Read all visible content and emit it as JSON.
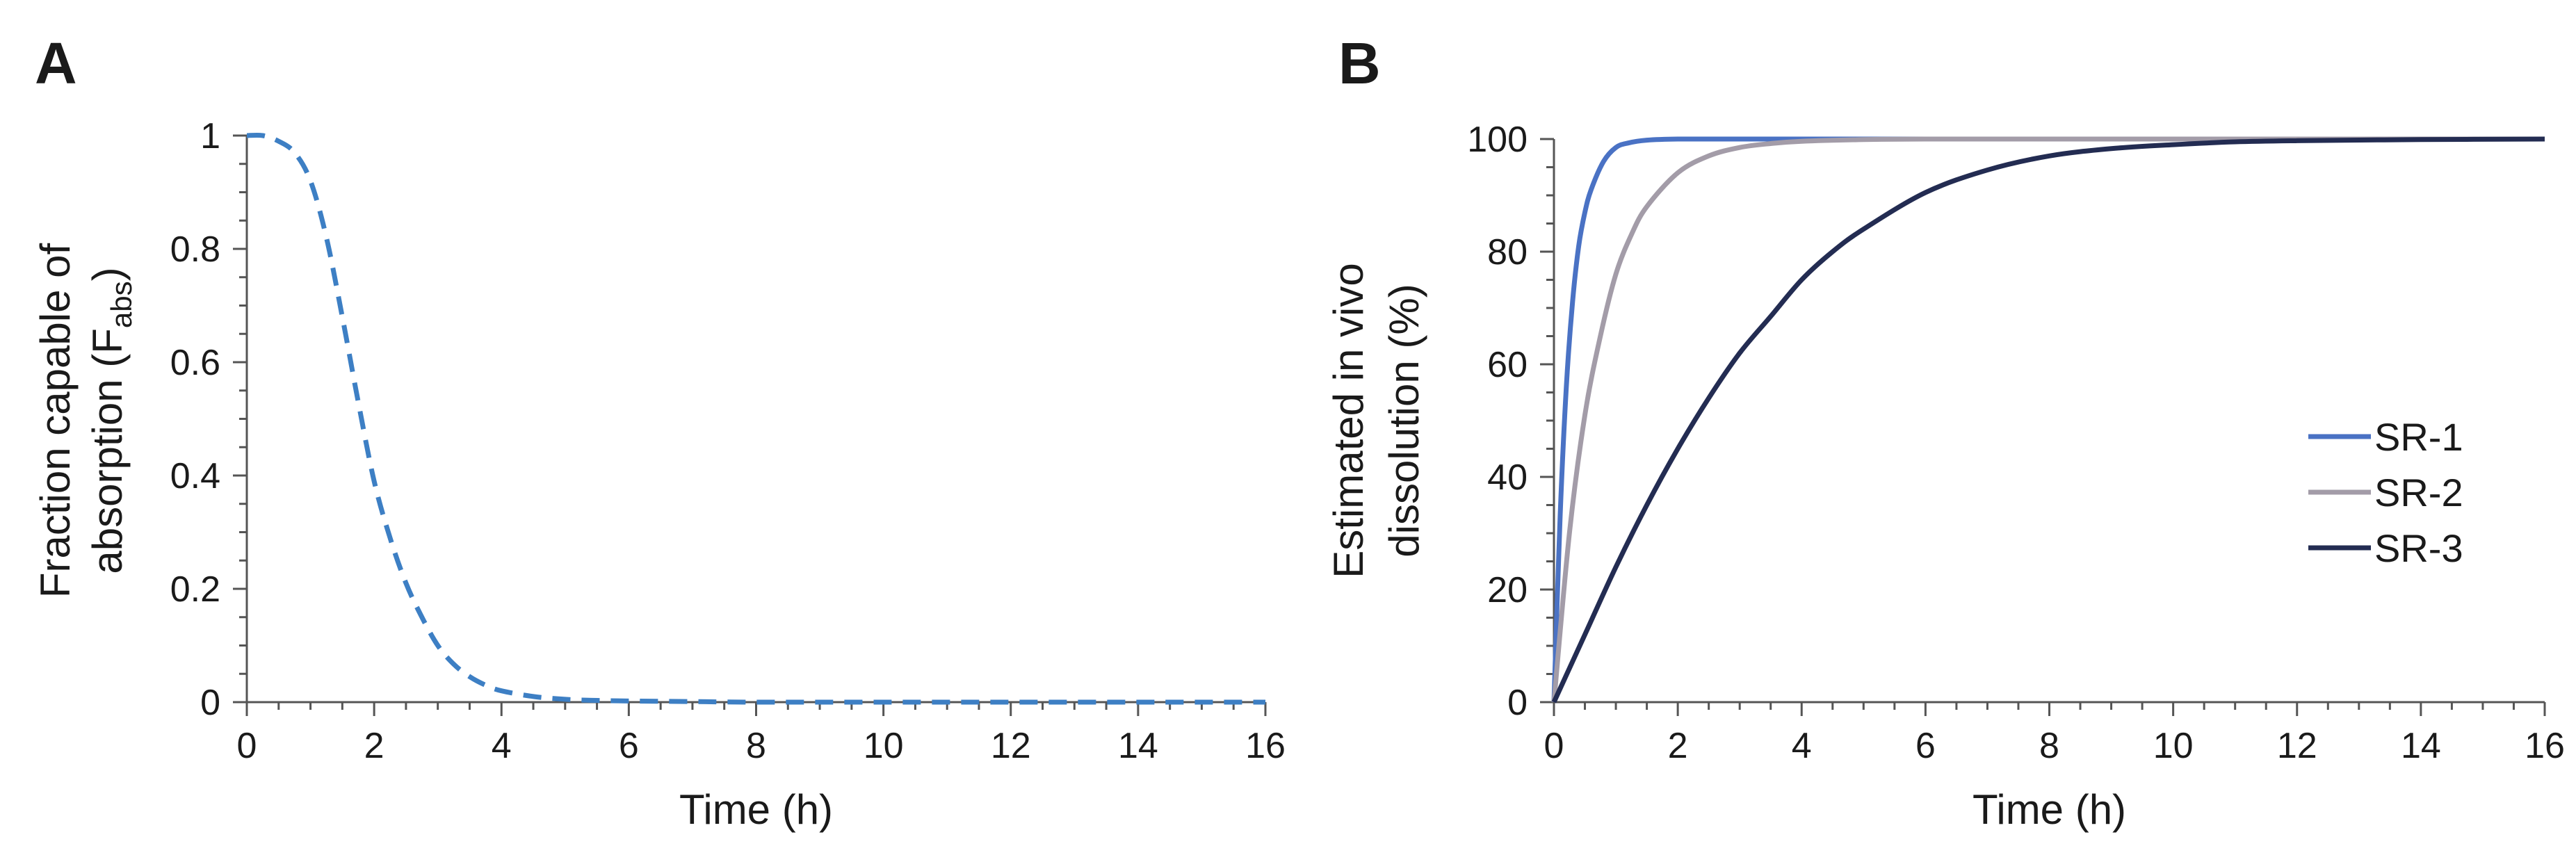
{
  "chart_data": [
    {
      "panel": "A",
      "type": "line",
      "title": "",
      "xlabel": "Time (h)",
      "ylabel_lines": [
        "Fraction capable of",
        "absorption (F"
      ],
      "ylabel_sub": "abs",
      "ylabel_close": ")",
      "xlim": [
        0,
        16
      ],
      "ylim": [
        0,
        1
      ],
      "xticks": [
        0,
        2,
        4,
        6,
        8,
        10,
        12,
        14,
        16
      ],
      "yticks": [
        0,
        0.2,
        0.4,
        0.6,
        0.8,
        1
      ],
      "ytick_labels": [
        "0",
        "0.2",
        "0.4",
        "0.6",
        "0.8",
        "1"
      ],
      "grid": false,
      "series": [
        {
          "name": "Fabs",
          "color": "#3d7fc4",
          "style": "dashed",
          "x": [
            0,
            0.25,
            0.5,
            0.75,
            1,
            1.25,
            1.5,
            1.75,
            2,
            2.25,
            2.5,
            2.75,
            3,
            3.25,
            3.5,
            3.75,
            4,
            4.5,
            5,
            5.5,
            6,
            7,
            8,
            10,
            12,
            14,
            16
          ],
          "y": [
            1,
            1,
            0.99,
            0.97,
            0.92,
            0.82,
            0.68,
            0.53,
            0.39,
            0.29,
            0.21,
            0.15,
            0.1,
            0.067,
            0.045,
            0.03,
            0.02,
            0.01,
            0.005,
            0.003,
            0.002,
            0.001,
            0,
            0,
            0,
            0,
            0
          ]
        }
      ]
    },
    {
      "panel": "B",
      "type": "line",
      "title": "",
      "xlabel": "Time (h)",
      "ylabel_lines": [
        "Estimated  in vivo",
        "dissolution  (%)"
      ],
      "xlim": [
        0,
        16
      ],
      "ylim": [
        0,
        100
      ],
      "xticks": [
        0,
        2,
        4,
        6,
        8,
        10,
        12,
        14,
        16
      ],
      "yticks": [
        0,
        20,
        40,
        60,
        80,
        100
      ],
      "ytick_labels": [
        "0",
        "20",
        "40",
        "60",
        "80",
        "100"
      ],
      "grid": false,
      "legend_position": "right",
      "series": [
        {
          "name": "SR-1",
          "color": "#4a72c4",
          "style": "solid",
          "x": [
            0,
            0.1,
            0.2,
            0.3,
            0.4,
            0.5,
            0.6,
            0.8,
            1,
            1.2,
            1.5,
            2,
            3,
            4,
            6,
            8,
            10,
            12,
            14,
            16
          ],
          "y": [
            0,
            33,
            56,
            71,
            81,
            87,
            91,
            96,
            98.5,
            99.3,
            99.8,
            100,
            100,
            100,
            100,
            100,
            100,
            100,
            100,
            100
          ]
        },
        {
          "name": "SR-2",
          "color": "#a39ca8",
          "style": "solid",
          "x": [
            0,
            0.25,
            0.5,
            0.75,
            1,
            1.25,
            1.5,
            2,
            2.5,
            3,
            3.5,
            4,
            5,
            6,
            8,
            10,
            12,
            14,
            16
          ],
          "y": [
            0,
            30,
            51,
            65,
            76,
            83,
            88,
            94,
            97,
            98.5,
            99.2,
            99.6,
            99.9,
            100,
            100,
            100,
            100,
            100,
            100
          ]
        },
        {
          "name": "SR-3",
          "color": "#232c52",
          "style": "solid",
          "x": [
            0,
            0.5,
            1,
            1.5,
            2,
            2.5,
            3,
            3.5,
            4,
            4.5,
            5,
            6,
            7,
            8,
            9,
            10,
            11,
            12,
            14,
            16
          ],
          "y": [
            0,
            12,
            24,
            35,
            45,
            54,
            62,
            68.5,
            75,
            80,
            84,
            90.5,
            94.5,
            97,
            98.3,
            99,
            99.5,
            99.7,
            99.9,
            100
          ]
        }
      ]
    }
  ]
}
